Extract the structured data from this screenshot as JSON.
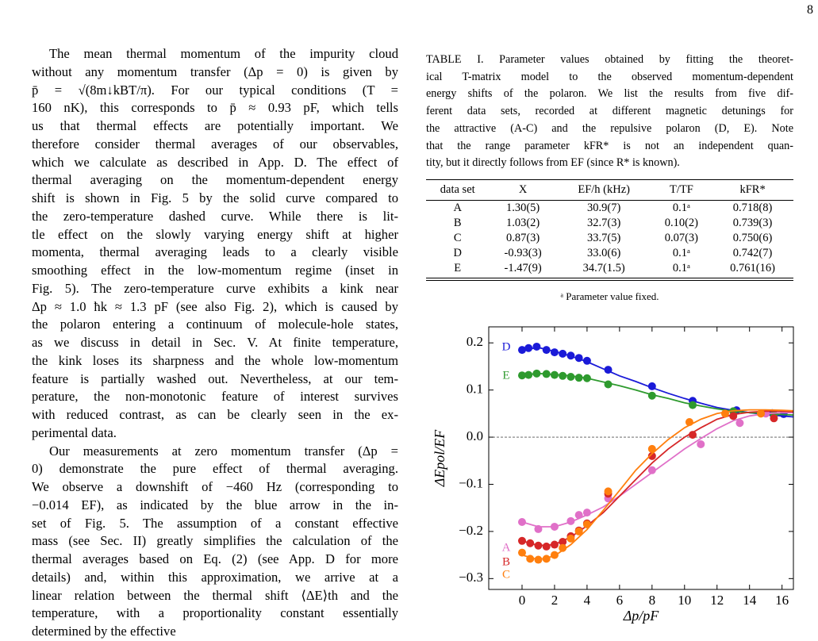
{
  "page_number": "8",
  "text": {
    "paragraphs": [
      [
        "The mean thermal momentum of the impurity cloud",
        "without any momentum transfer (Δp = 0) is given by",
        "p̄ = √(8m↓kBT/π).  For our typical conditions (T =",
        "160 nK), this corresponds to p̄ ≈ 0.93 pF, which tells",
        "us that thermal effects are potentially important.  We",
        "therefore consider thermal averages of our observables,",
        "which we calculate as described in App. D. The effect of",
        "thermal averaging on the momentum-dependent energy",
        "shift is shown in Fig. 5 by the solid curve compared to",
        "the zero-temperature dashed curve.  While there is lit-",
        "tle effect on the slowly varying energy shift at higher",
        "momenta, thermal averaging leads to a clearly visible",
        "smoothing effect in the low-momentum regime (inset in",
        "Fig. 5). The zero-temperature curve exhibits a kink near",
        "Δp ≈ 1.0 ħk ≈ 1.3 pF (see also Fig. 2), which is caused by",
        "the polaron entering a continuum of molecule-hole states,",
        "as we discuss in detail in Sec. V. At finite temperature,",
        "the kink loses its sharpness and the whole low-momentum",
        "feature is partially washed out. Nevertheless, at our tem-",
        "perature, the non-monotonic feature of interest survives",
        "with reduced contrast, as can be clearly seen in the ex-",
        "perimental data."
      ],
      [
        "Our measurements at zero momentum transfer (Δp =",
        "0) demonstrate the pure effect of thermal averaging.",
        "We observe a downshift of −460 Hz (corresponding to",
        "−0.014 EF), as indicated by the blue arrow in the in-",
        "set of Fig. 5.  The assumption of a constant effective",
        "mass (see Sec. II) greatly simplifies the calculation of the",
        "thermal averages based on Eq. (2) (see App. D for more",
        "details) and, within this approximation, we arrive at a",
        "linear relation between the thermal shift ⟨ΔE⟩th and the",
        "temperature, with a proportionality constant essentially",
        "determined by the effective"
      ]
    ]
  },
  "table": {
    "caption": [
      "TABLE I. Parameter values obtained by fitting the theoret-",
      "ical T-matrix model to the observed momentum-dependent",
      "energy shifts of the polaron. We list the results from five dif-",
      "ferent data sets, recorded at different magnetic detunings for",
      "the attractive (A-C) and the repulsive polaron (D, E). Note",
      "that the range parameter kFR* is not an independent quan-",
      "tity, but it directly follows from EF (since R* is known)."
    ],
    "header": [
      "data set",
      "X",
      "EF/h (kHz)",
      "T/TF",
      "kFR*"
    ],
    "rows": [
      [
        "A",
        "1.30(5)",
        "30.9(7)",
        "0.1ᵃ",
        "0.718(8)"
      ],
      [
        "B",
        "1.03(2)",
        "32.7(3)",
        "0.10(2)",
        "0.739(3)"
      ],
      [
        "C",
        "0.87(3)",
        "33.7(5)",
        "0.07(3)",
        "0.750(6)"
      ],
      [
        "D",
        "-0.93(3)",
        "33.0(6)",
        "0.1ᵃ",
        "0.742(7)"
      ],
      [
        "E",
        "-1.47(9)",
        "34.7(1.5)",
        "0.1ᵃ",
        "0.761(16)"
      ]
    ],
    "footnote": "ᵃ Parameter value fixed."
  },
  "chart_data": {
    "type": "scatter",
    "x_label": "Δp/pF",
    "y_label": "ΔEpol/EF",
    "xlim": [
      -2.05,
      16.7
    ],
    "ylim": [
      -0.323,
      0.234
    ],
    "xticks": [
      0,
      2,
      4,
      6,
      8,
      10,
      12,
      14,
      16
    ],
    "yticks": [
      {
        "value": -0.3,
        "label": "−0.3"
      },
      {
        "value": -0.2,
        "label": "−0.2"
      },
      {
        "value": -0.1,
        "label": "−0.1"
      },
      {
        "value": 0,
        "label": "0.0"
      },
      0.1,
      0.2
    ],
    "hline": 0,
    "fit_x": [
      0,
      1,
      2,
      3,
      4,
      5,
      6,
      7,
      8,
      9,
      10,
      11,
      12,
      13,
      14,
      15,
      16,
      16.7
    ],
    "series": [
      {
        "name": "D",
        "color": "#1a1ad8",
        "x": [
          0,
          0.4,
          0.9,
          1.5,
          2,
          2.5,
          3,
          3.5,
          4,
          5.3,
          8,
          10.5,
          13.2,
          15.4,
          16.1
        ],
        "values": [
          0.185,
          0.189,
          0.192,
          0.185,
          0.18,
          0.177,
          0.173,
          0.168,
          0.162,
          0.143,
          0.108,
          0.077,
          0.057,
          0.051,
          0.049
        ],
        "fit": [
          0.185,
          0.19,
          0.182,
          0.172,
          0.16,
          0.145,
          0.13,
          0.118,
          0.105,
          0.093,
          0.082,
          0.072,
          0.063,
          0.057,
          0.052,
          0.048,
          0.045,
          0.043
        ]
      },
      {
        "name": "E",
        "color": "#2e9a2e",
        "x": [
          0,
          0.4,
          0.9,
          1.5,
          2,
          2.5,
          3,
          3.5,
          4,
          5.3,
          8,
          10.5,
          13,
          15.5
        ],
        "values": [
          0.131,
          0.132,
          0.135,
          0.134,
          0.132,
          0.13,
          0.128,
          0.126,
          0.125,
          0.112,
          0.088,
          0.068,
          0.055,
          0.048
        ],
        "fit": [
          0.132,
          0.135,
          0.133,
          0.13,
          0.125,
          0.117,
          0.109,
          0.1,
          0.09,
          0.082,
          0.073,
          0.066,
          0.06,
          0.055,
          0.052,
          0.05,
          0.048,
          0.047
        ]
      },
      {
        "name": "A",
        "color": "#e070c8",
        "x": [
          0,
          1,
          2,
          3,
          3.5,
          4,
          5.3,
          8,
          11,
          13.4,
          15
        ],
        "values": [
          -0.18,
          -0.195,
          -0.19,
          -0.178,
          -0.165,
          -0.16,
          -0.13,
          -0.07,
          -0.015,
          0.03,
          0.05
        ],
        "fit": [
          -0.18,
          -0.19,
          -0.19,
          -0.18,
          -0.165,
          -0.148,
          -0.125,
          -0.1,
          -0.075,
          -0.05,
          -0.025,
          -0.003,
          0.018,
          0.035,
          0.045,
          0.05,
          0.052,
          0.052
        ]
      },
      {
        "name": "B",
        "color": "#d62728",
        "x": [
          0,
          0.5,
          1,
          1.5,
          2,
          2.5,
          3,
          3.5,
          4,
          5.3,
          8,
          10.5,
          13,
          15.5
        ],
        "values": [
          -0.22,
          -0.225,
          -0.23,
          -0.232,
          -0.228,
          -0.222,
          -0.21,
          -0.198,
          -0.183,
          -0.12,
          -0.04,
          0.005,
          0.045,
          0.04
        ],
        "fit": [
          -0.22,
          -0.23,
          -0.228,
          -0.212,
          -0.188,
          -0.16,
          -0.125,
          -0.09,
          -0.055,
          -0.025,
          0.0,
          0.02,
          0.038,
          0.048,
          0.053,
          0.055,
          0.055,
          0.054
        ]
      },
      {
        "name": "C",
        "color": "#ff7f0e",
        "x": [
          0,
          0.5,
          1,
          1.5,
          2,
          2.5,
          3,
          3.5,
          4,
          5.3,
          8,
          10.3,
          12.5,
          14.7
        ],
        "values": [
          -0.245,
          -0.258,
          -0.26,
          -0.258,
          -0.25,
          -0.235,
          -0.215,
          -0.2,
          -0.185,
          -0.115,
          -0.025,
          0.032,
          0.05,
          0.05
        ],
        "fit": [
          -0.25,
          -0.26,
          -0.252,
          -0.228,
          -0.196,
          -0.155,
          -0.113,
          -0.07,
          -0.035,
          -0.005,
          0.02,
          0.038,
          0.05,
          0.056,
          0.058,
          0.058,
          0.057,
          0.056
        ]
      }
    ]
  }
}
